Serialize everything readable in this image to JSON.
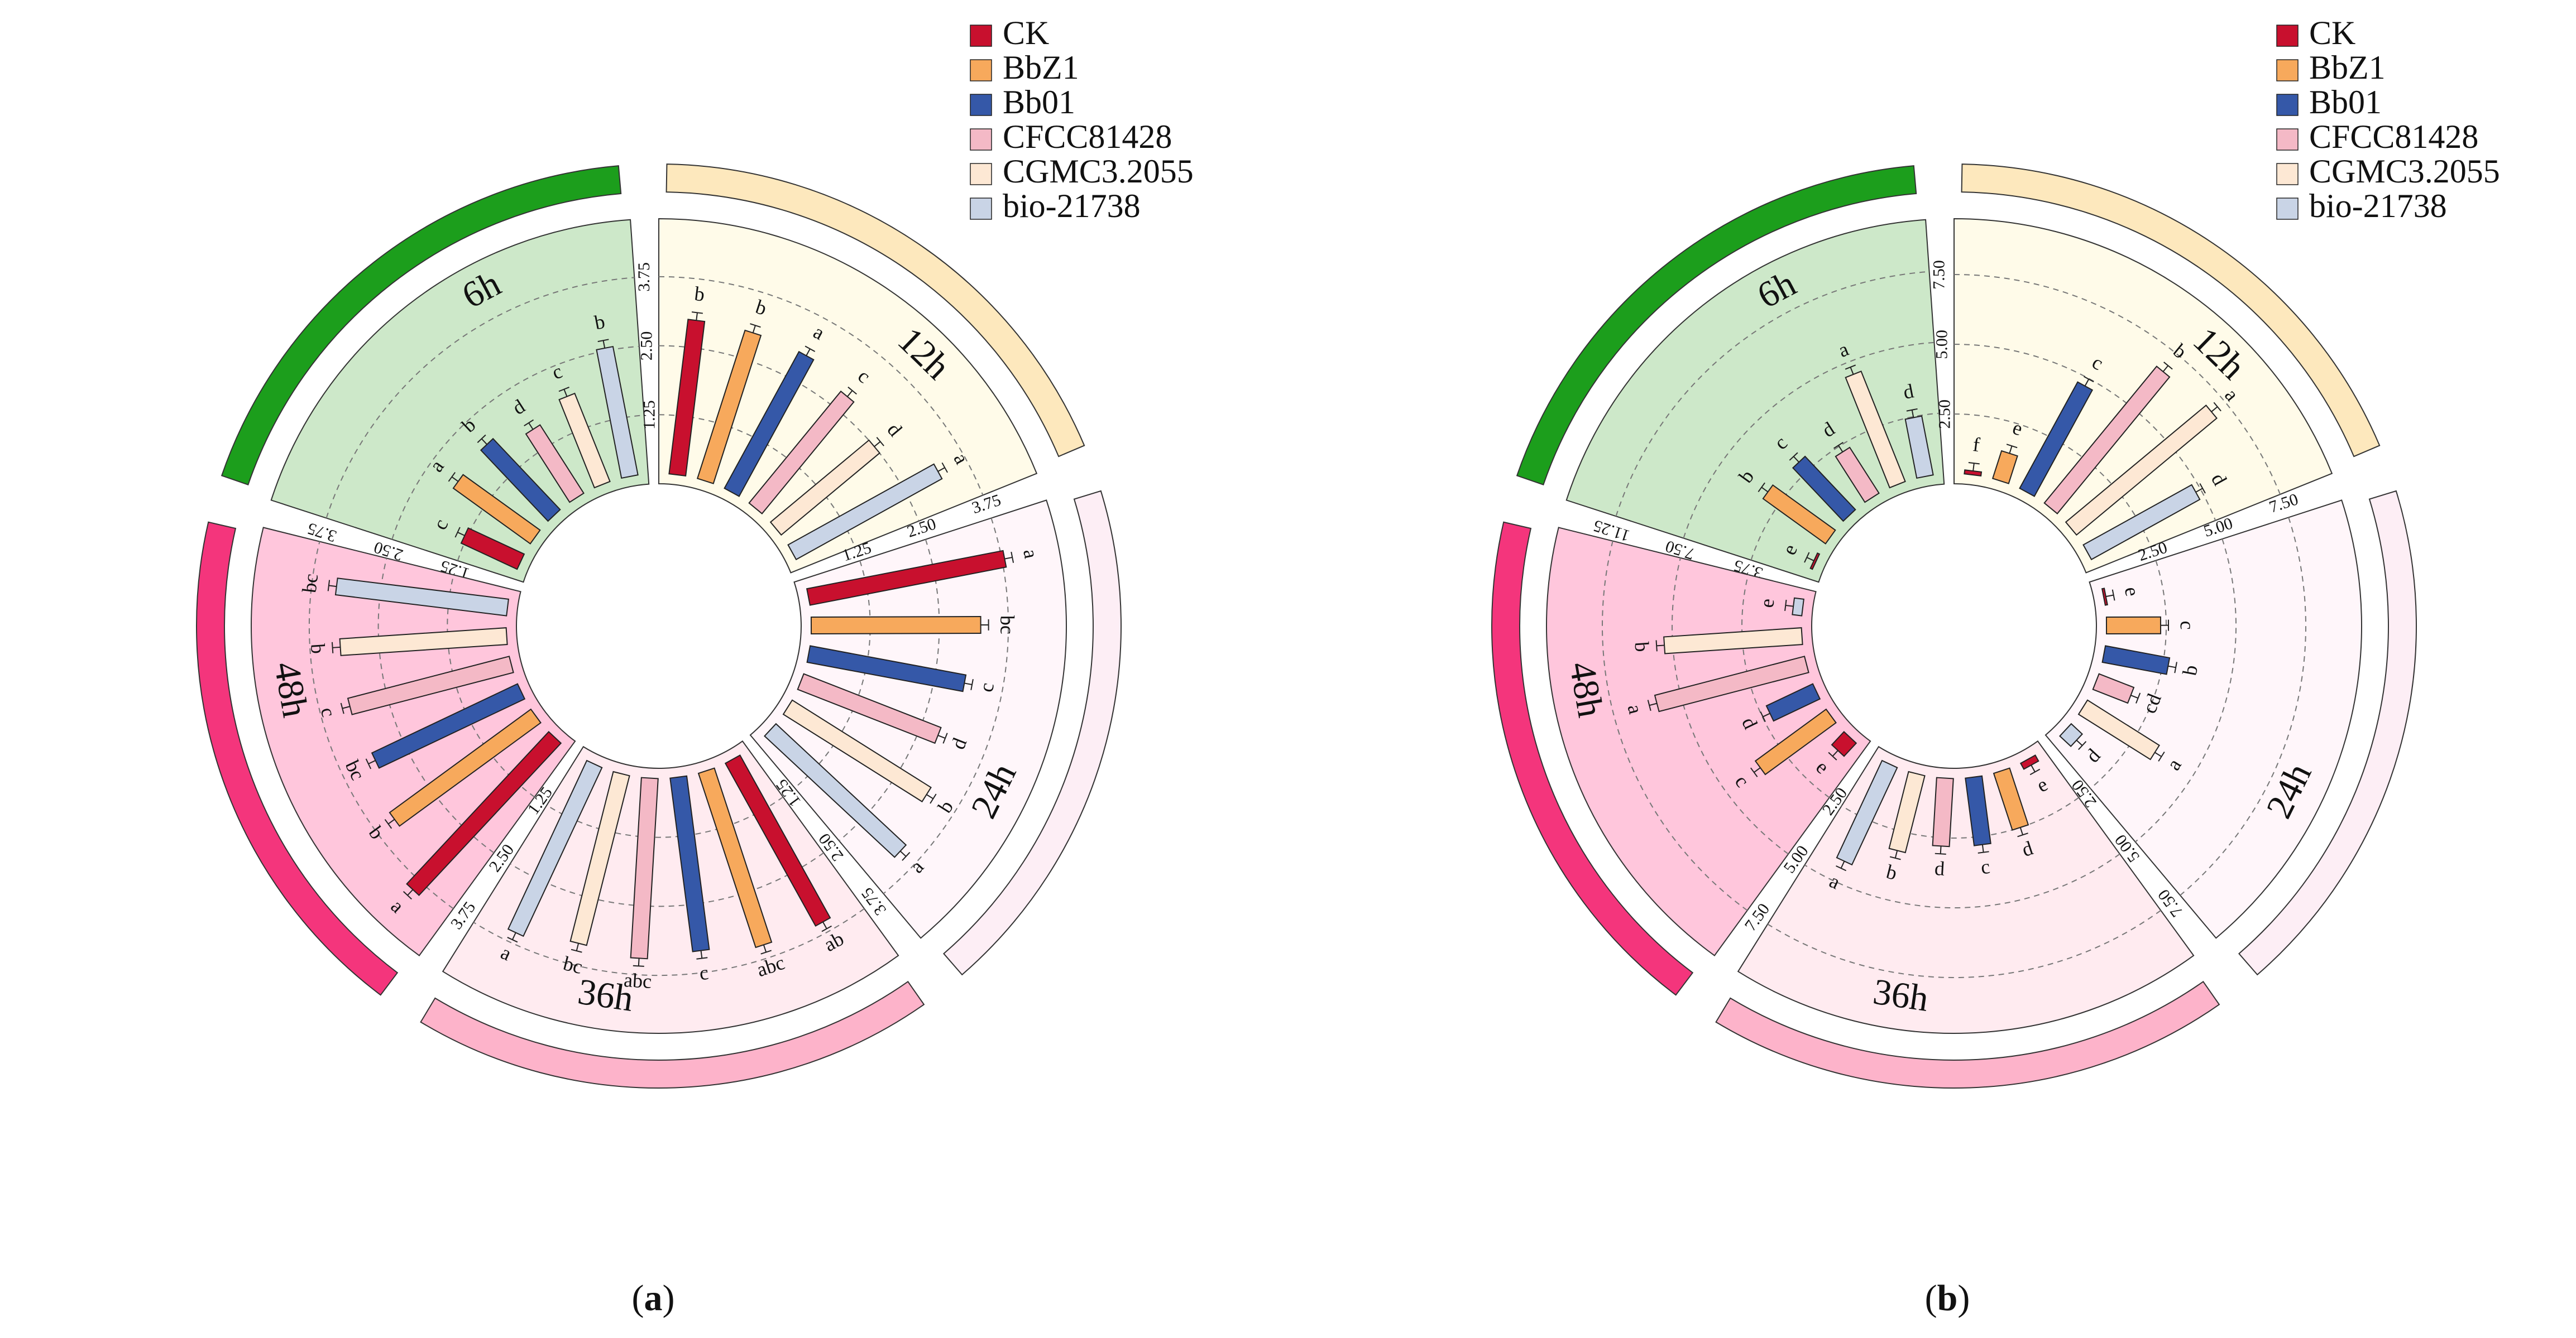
{
  "legend": [
    {
      "name": "CK",
      "color": "#c8102e"
    },
    {
      "name": "BbZ1",
      "color": "#f7a95c"
    },
    {
      "name": "Bb01",
      "color": "#3558a8"
    },
    {
      "name": "CFCC81428",
      "color": "#f4b9c6"
    },
    {
      "name": "CGMC3.2055",
      "color": "#fde8d4"
    },
    {
      "name": "bio-21738",
      "color": "#c9d4e6"
    }
  ],
  "panel_labels": [
    {
      "open": "(",
      "letter": "a",
      "close": ")"
    },
    {
      "open": "(",
      "letter": "b",
      "close": ")"
    }
  ],
  "chart_data": [
    {
      "type": "circular-bar",
      "panel": "a",
      "series": [
        "CK",
        "BbZ1",
        "Bb01",
        "CFCC81428",
        "CGMC3.2055",
        "bio-21738"
      ],
      "groups": [
        {
          "label": "6h",
          "ticks": [
            "1.25",
            "2.50",
            "3.75"
          ],
          "tick_values": [
            1.25,
            2.5,
            3.75
          ],
          "max": 4.8,
          "values": [
            1.3,
            1.9,
            1.95,
            1.65,
            1.9,
            2.55
          ],
          "letters": [
            "c",
            "a",
            "b",
            "d",
            "c",
            "b"
          ]
        },
        {
          "label": "12h",
          "ticks": [
            "1.25",
            "2.50",
            "3.75"
          ],
          "tick_values": [
            1.25,
            2.5,
            3.75
          ],
          "max": 4.8,
          "values": [
            3.0,
            3.0,
            3.0,
            2.8,
            2.5,
            3.2
          ],
          "letters": [
            "b",
            "b",
            "a",
            "c",
            "d",
            "a"
          ]
        },
        {
          "label": "24h",
          "ticks": [
            "1.25",
            "2.50",
            "3.75"
          ],
          "tick_values": [
            1.25,
            2.5,
            3.75
          ],
          "max": 4.8,
          "values": [
            3.8,
            3.25,
            3.05,
            2.85,
            3.15,
            3.4
          ],
          "letters": [
            "a",
            "bc",
            "c",
            "d",
            "b",
            "a"
          ]
        },
        {
          "label": "36h",
          "ticks": [
            "1.25",
            "2.50",
            "3.75"
          ],
          "tick_values": [
            1.25,
            2.5,
            3.75
          ],
          "max": 4.8,
          "values": [
            3.55,
            3.5,
            3.35,
            3.45,
            3.35,
            3.55
          ],
          "letters": [
            "ab",
            "abc",
            "c",
            "abc",
            "bc",
            "a"
          ]
        },
        {
          "label": "48h",
          "ticks": [
            "1.25",
            "2.50",
            "3.75"
          ],
          "tick_values": [
            1.25,
            2.5,
            3.75
          ],
          "max": 4.8,
          "values": [
            3.95,
            3.35,
            3.1,
            3.2,
            3.2,
            3.3
          ],
          "letters": [
            "a",
            "b",
            "bc",
            "c",
            "b",
            "bc"
          ]
        }
      ]
    },
    {
      "type": "circular-bar",
      "panel": "b",
      "series": [
        "CK",
        "BbZ1",
        "Bb01",
        "CFCC81428",
        "CGMC3.2055",
        "bio-21738"
      ],
      "groups": [
        {
          "label": "6h",
          "ticks": [
            "3.75",
            "7.50",
            "11.25"
          ],
          "tick_values": [
            3.75,
            7.5,
            11.25
          ],
          "max": 14.0,
          "values": [
            0.6,
            4.6,
            4.4,
            3.4,
            6.8,
            3.7
          ],
          "letters": [
            "e",
            "b",
            "c",
            "d",
            "a",
            "d"
          ]
        },
        {
          "label": "12h",
          "ticks": [
            "2.50",
            "5.00",
            "7.50"
          ],
          "tick_values": [
            2.5,
            5.0,
            7.5
          ],
          "max": 9.5,
          "values": [
            0.5,
            1.4,
            4.7,
            6.7,
            6.9,
            4.8
          ],
          "letters": [
            "f",
            "e",
            "c",
            "b",
            "a",
            "d"
          ]
        },
        {
          "label": "24h",
          "ticks": [
            "2.50",
            "5.00",
            "7.50"
          ],
          "tick_values": [
            2.5,
            5.0,
            7.5
          ],
          "max": 9.5,
          "values": [
            0.3,
            2.3,
            2.7,
            1.7,
            3.4,
            0.9
          ],
          "letters": [
            "e",
            "c",
            "b",
            "cd",
            "a",
            "d"
          ]
        },
        {
          "label": "36h",
          "ticks": [
            "2.50",
            "5.00",
            "7.50"
          ],
          "tick_values": [
            2.5,
            5.0,
            7.5
          ],
          "max": 9.5,
          "values": [
            0.6,
            2.5,
            2.8,
            2.8,
            3.2,
            4.2
          ],
          "letters": [
            "e",
            "d",
            "c",
            "d",
            "b",
            "a"
          ]
        },
        {
          "label": "48h",
          "ticks": [
            "2.50",
            "5.00",
            "7.50"
          ],
          "tick_values": [
            2.5,
            5.0,
            7.5
          ],
          "max": 9.5,
          "values": [
            1.0,
            3.5,
            2.2,
            5.9,
            5.3,
            0.7
          ],
          "letters": [
            "e",
            "c",
            "d",
            "a",
            "b",
            "e"
          ]
        }
      ]
    }
  ],
  "styles": {
    "group_bg": [
      "#cde8c9",
      "#fffbe9",
      "#fff6fa",
      "#ffebf0",
      "#ffc6dc"
    ],
    "outer_arc": [
      "#1c9e1c",
      "#fde8bd",
      "#fdeef5",
      "#fdb3ca",
      "#f4357c"
    ]
  }
}
